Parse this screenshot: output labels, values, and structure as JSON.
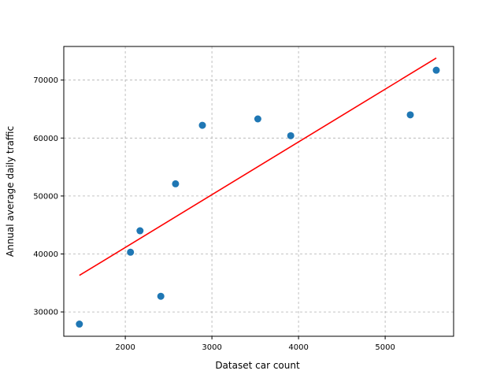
{
  "chart_data": {
    "type": "scatter",
    "title": "",
    "xlabel": "Dataset car count",
    "ylabel": "Annual average daily traffic",
    "xlim": [
      1290,
      5790
    ],
    "ylim": [
      25800,
      75800
    ],
    "xticks": [
      2000,
      3000,
      4000,
      5000
    ],
    "yticks": [
      30000,
      40000,
      50000,
      60000,
      70000
    ],
    "grid": true,
    "points": [
      {
        "x": 1470,
        "y": 27900
      },
      {
        "x": 2060,
        "y": 40300
      },
      {
        "x": 2170,
        "y": 44000
      },
      {
        "x": 2410,
        "y": 32700
      },
      {
        "x": 2580,
        "y": 52100
      },
      {
        "x": 2890,
        "y": 62200
      },
      {
        "x": 3530,
        "y": 63300
      },
      {
        "x": 3910,
        "y": 60400
      },
      {
        "x": 5290,
        "y": 64000
      },
      {
        "x": 5590,
        "y": 71700
      }
    ],
    "fit_line": {
      "x": [
        1470,
        5590
      ],
      "y": [
        36300,
        73800
      ]
    },
    "colors": {
      "points": "#1f77b4",
      "fit_line": "#ff0000",
      "grid": "#b0b0b0"
    }
  }
}
